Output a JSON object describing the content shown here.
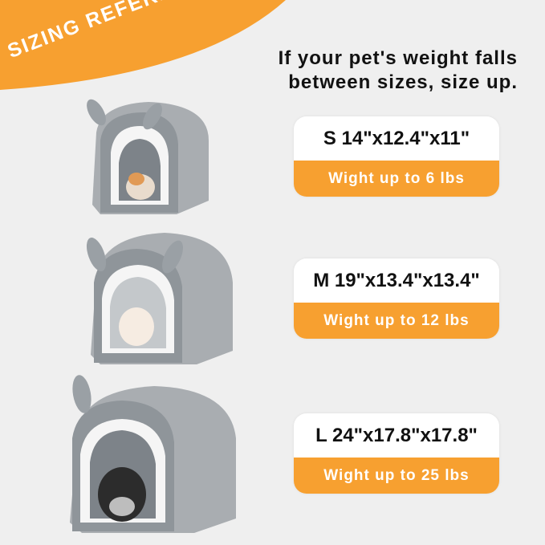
{
  "banner": {
    "label": "SIZING REFERENCE",
    "color": "#f7a030"
  },
  "note": {
    "line1": "If your pet's weight falls",
    "line2": "between sizes, size up."
  },
  "sizes": [
    {
      "dims": "S 14\"x12.4\"x11\"",
      "weight": "Wight up to 6 lbs",
      "pet": "cat"
    },
    {
      "dims": "M 19\"x13.4\"x13.4\"",
      "weight": "Wight up to 12 lbs",
      "pet": "small dog"
    },
    {
      "dims": "L 24\"x17.8\"x17.8\"",
      "weight": "Wight up to 25 lbs",
      "pet": "schnauzer"
    }
  ]
}
